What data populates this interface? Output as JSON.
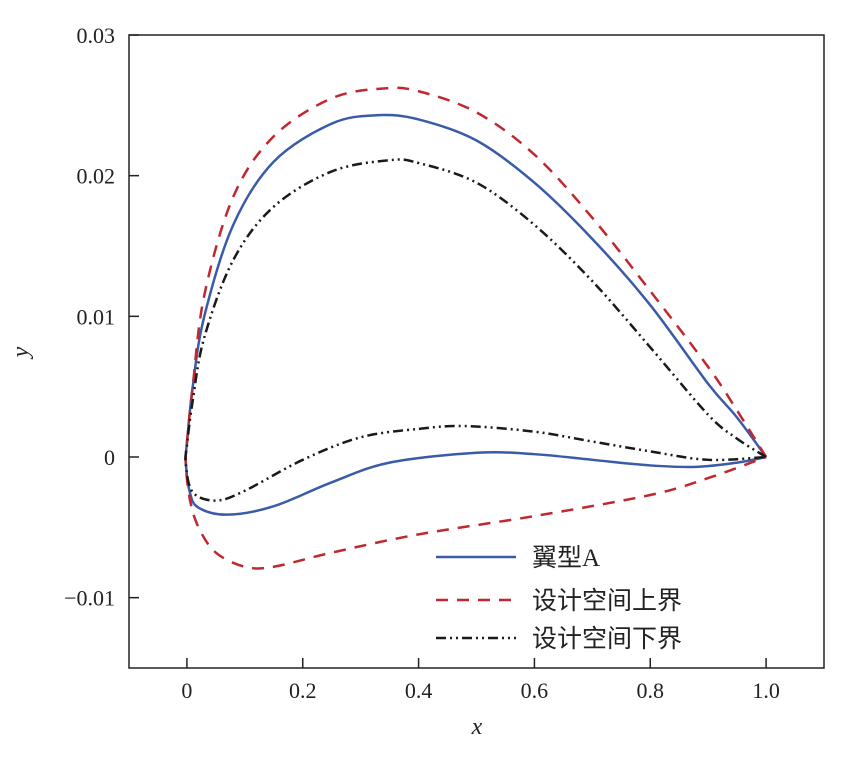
{
  "chart_data": {
    "type": "line",
    "title": "",
    "xlabel": "x",
    "ylabel": "y",
    "xlim": [
      -0.1,
      1.1
    ],
    "ylim": [
      -0.015,
      0.03
    ],
    "xticks": [
      0,
      0.2,
      0.4,
      0.6,
      0.8,
      1.0
    ],
    "xtick_labels": [
      "0",
      "0.2",
      "0.4",
      "0.6",
      "0.8",
      "1.0"
    ],
    "yticks": [
      -0.01,
      0,
      0.01,
      0.02,
      0.03
    ],
    "ytick_labels": [
      "−0.01",
      "0",
      "0.01",
      "0.02",
      "0.03"
    ],
    "grid": false,
    "legend_position": "bottom-right",
    "series": [
      {
        "name": "翼型A",
        "color": "#3a5ba8",
        "style": "solid",
        "points": [
          [
            1,
            0
          ],
          [
            0.95,
            0.0028
          ],
          [
            0.9,
            0.0052
          ],
          [
            0.8,
            0.0108
          ],
          [
            0.7,
            0.0155
          ],
          [
            0.6,
            0.0195
          ],
          [
            0.5,
            0.0225
          ],
          [
            0.4,
            0.024
          ],
          [
            0.33,
            0.0243
          ],
          [
            0.25,
            0.0237
          ],
          [
            0.15,
            0.021
          ],
          [
            0.08,
            0.0165
          ],
          [
            0.03,
            0.01
          ],
          [
            0.01,
            0.005
          ],
          [
            0,
            0.001
          ],
          [
            -0.002,
            -0.0003
          ],
          [
            0.005,
            -0.0025
          ],
          [
            0.02,
            -0.0036
          ],
          [
            0.07,
            -0.0041
          ],
          [
            0.15,
            -0.0035
          ],
          [
            0.25,
            -0.0018
          ],
          [
            0.35,
            -0.0004
          ],
          [
            0.5,
            0.0003
          ],
          [
            0.6,
            0.0002
          ],
          [
            0.7,
            -0.0002
          ],
          [
            0.8,
            -0.0006
          ],
          [
            0.88,
            -0.0007
          ],
          [
            0.95,
            -0.0004
          ],
          [
            1,
            0
          ]
        ]
      },
      {
        "name": "设计空间上界",
        "color": "#c0282e",
        "style": "dashed",
        "points": [
          [
            1,
            0
          ],
          [
            0.95,
            0.0033
          ],
          [
            0.9,
            0.0064
          ],
          [
            0.8,
            0.0118
          ],
          [
            0.7,
            0.017
          ],
          [
            0.6,
            0.0215
          ],
          [
            0.5,
            0.0245
          ],
          [
            0.4,
            0.026
          ],
          [
            0.34,
            0.0262
          ],
          [
            0.25,
            0.0255
          ],
          [
            0.15,
            0.0228
          ],
          [
            0.08,
            0.0185
          ],
          [
            0.03,
            0.0115
          ],
          [
            0.01,
            0.005
          ],
          [
            0,
            0.001
          ],
          [
            -0.002,
            -0.0005
          ],
          [
            0.005,
            -0.003
          ],
          [
            0.02,
            -0.005
          ],
          [
            0.05,
            -0.0068
          ],
          [
            0.1,
            -0.0078
          ],
          [
            0.15,
            -0.0078
          ],
          [
            0.25,
            -0.0068
          ],
          [
            0.4,
            -0.0055
          ],
          [
            0.6,
            -0.0042
          ],
          [
            0.8,
            -0.0027
          ],
          [
            0.9,
            -0.0015
          ],
          [
            1,
            0
          ]
        ]
      },
      {
        "name": "设计空间下界",
        "color": "#1a1a1a",
        "style": "dashdotdot",
        "points": [
          [
            1,
            0
          ],
          [
            0.95,
            0.0013
          ],
          [
            0.9,
            0.003
          ],
          [
            0.8,
            0.0078
          ],
          [
            0.7,
            0.0125
          ],
          [
            0.6,
            0.0165
          ],
          [
            0.5,
            0.0195
          ],
          [
            0.4,
            0.0209
          ],
          [
            0.35,
            0.0211
          ],
          [
            0.25,
            0.0203
          ],
          [
            0.15,
            0.0178
          ],
          [
            0.08,
            0.014
          ],
          [
            0.03,
            0.0085
          ],
          [
            0.01,
            0.004
          ],
          [
            0,
            0.0008
          ],
          [
            -0.002,
            -0.0005
          ],
          [
            0.01,
            -0.0025
          ],
          [
            0.05,
            -0.0031
          ],
          [
            0.1,
            -0.0024
          ],
          [
            0.2,
            -0.0002
          ],
          [
            0.3,
            0.0014
          ],
          [
            0.4,
            0.002
          ],
          [
            0.48,
            0.0022
          ],
          [
            0.6,
            0.0018
          ],
          [
            0.7,
            0.0011
          ],
          [
            0.8,
            0.0004
          ],
          [
            0.9,
            -0.0002
          ],
          [
            1,
            0
          ]
        ]
      }
    ]
  }
}
